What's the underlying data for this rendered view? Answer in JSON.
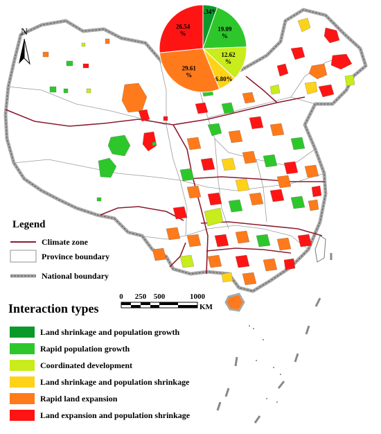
{
  "north_label": "N",
  "pie": {
    "slices": [
      {
        "label": "5.34%",
        "value": 5.34,
        "color": "#0a9a2a"
      },
      {
        "label": "19.09%",
        "value": 19.09,
        "color": "#2ec72b"
      },
      {
        "label": "12.62%",
        "value": 12.62,
        "color": "#c8ec1c"
      },
      {
        "label": "6.80%",
        "value": 6.8,
        "color": "#ffd21a"
      },
      {
        "label": "29.61%",
        "value": 29.61,
        "color": "#ff7a1a"
      },
      {
        "label": "26.54%",
        "value": 26.54,
        "color": "#ff1414"
      }
    ]
  },
  "legend": {
    "title": "Legend",
    "items": [
      {
        "label": "Climate zone",
        "symbol": "line",
        "color": "#8b1a2e"
      },
      {
        "label": "Province boundary",
        "symbol": "box"
      },
      {
        "label": "National boundary",
        "symbol": "dashed"
      }
    ]
  },
  "scale_bar": {
    "ticks": [
      "0",
      "250",
      "500",
      "1000"
    ],
    "unit": "KM"
  },
  "interaction": {
    "title": "Interaction types",
    "types": [
      {
        "label": "Land shrinkage and population growth",
        "color": "#0a9a2a"
      },
      {
        "label": "Rapid population growth",
        "color": "#2ec72b"
      },
      {
        "label": "Coordinated development",
        "color": "#c8ec1c"
      },
      {
        "label": "Land shrinkage and population shrinkage",
        "color": "#ffd21a"
      },
      {
        "label": "Rapid land expansion",
        "color": "#ff7a1a"
      },
      {
        "label": "Land expansion and population shrinkage",
        "color": "#ff1414"
      }
    ]
  }
}
